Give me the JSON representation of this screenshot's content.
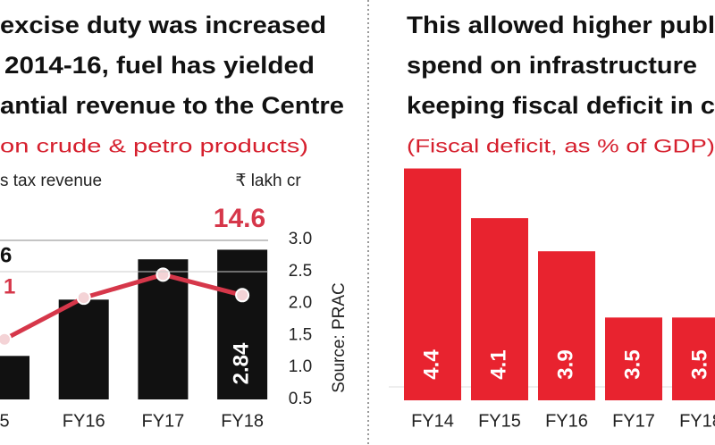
{
  "chart_data": [
    {
      "type": "bar-line",
      "title": [
        "excise duty was increased",
        "2014-16, fuel has yielded",
        "antial revenue to the Centre"
      ],
      "subtitle": "on crude & petro products)",
      "y_label": "s tax revenue",
      "unit": "₹ lakh cr",
      "source": "Source: PRAC",
      "categories": [
        "5",
        "FY16",
        "FY17",
        "FY18"
      ],
      "series": [
        {
          "kind": "bar",
          "color": "#111111",
          "values": [
            1.18,
            2.06,
            2.69,
            2.84
          ],
          "value_labels": [
            null,
            null,
            null,
            "2.84"
          ]
        },
        {
          "kind": "line",
          "color": "#d6374a",
          "values": [
            1.44,
            2.09,
            2.45,
            2.13
          ]
        }
      ],
      "annotations": [
        {
          "text": "6",
          "color": "#111111"
        },
        {
          "text": "1",
          "color": "#d6374a"
        },
        {
          "text": "14.6",
          "color": "#d6374a"
        }
      ],
      "ylim": [
        0.5,
        3.0
      ],
      "yticks": [
        0.5,
        {
          "value": 1,
          "label": "1.0"
        },
        1.5,
        {
          "value": 2,
          "label": "2.0"
        },
        2.5,
        {
          "value": 3,
          "label": "3.0"
        }
      ]
    },
    {
      "type": "bar",
      "title": [
        "This allowed higher publ",
        "spend on infrastructure",
        "keeping fiscal deficit in c"
      ],
      "subtitle": "(Fiscal deficit, as % of GDP)",
      "categories": [
        "FY14",
        "FY15",
        "FY16",
        "FY17",
        "FY18"
      ],
      "values": [
        4.4,
        4.1,
        3.9,
        3.5,
        3.5
      ],
      "color": "#e8232f",
      "ylim": [
        3.0,
        4.5
      ]
    }
  ]
}
